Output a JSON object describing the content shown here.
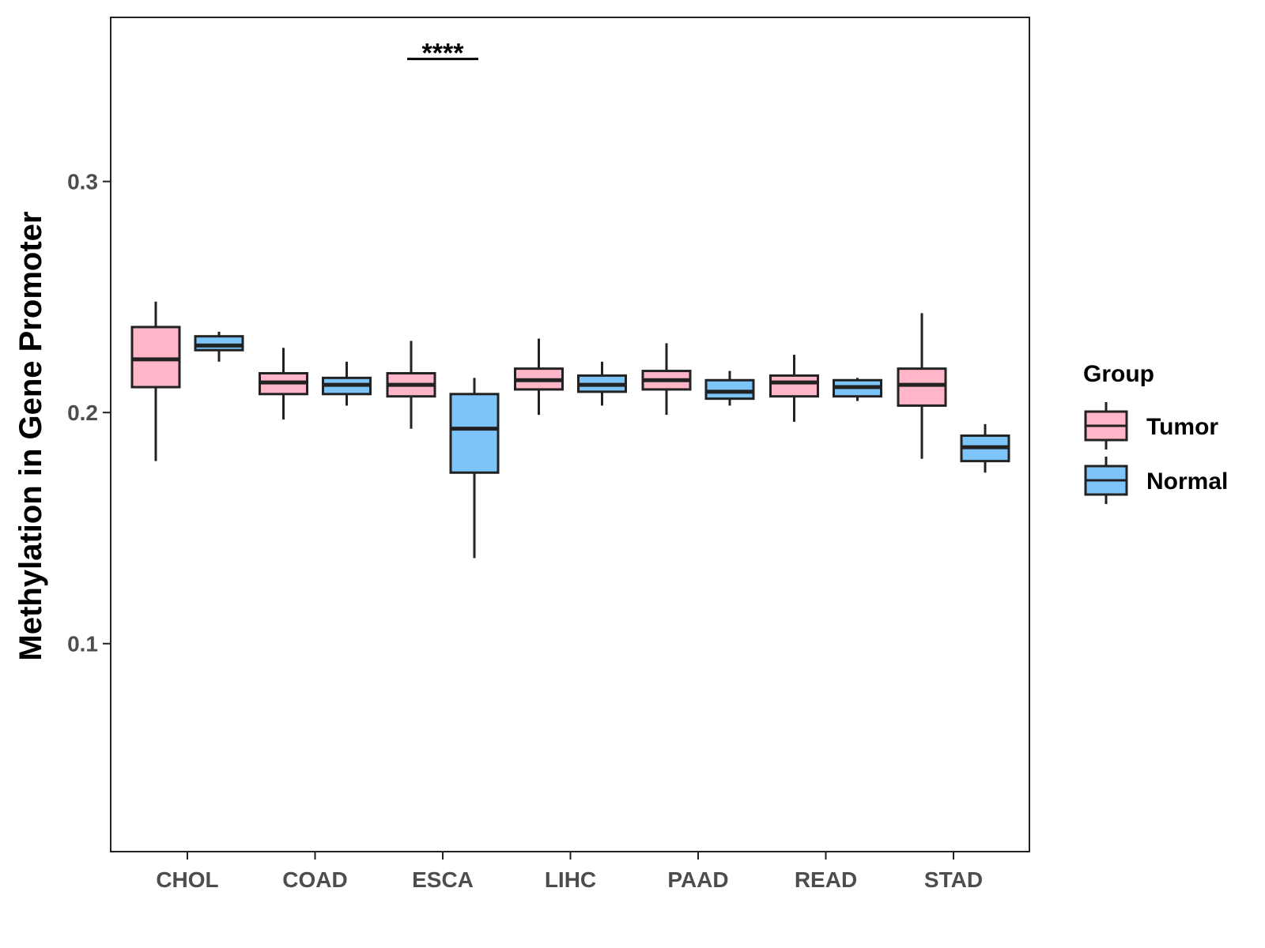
{
  "chart_data": {
    "type": "boxplot",
    "title": "",
    "xlabel": "",
    "ylabel": "Methylation in Gene Promoter",
    "ylim": [
      0.01,
      0.371
    ],
    "yticks": [
      0.1,
      0.2,
      0.3
    ],
    "ytick_labels": [
      "0.1",
      "0.2",
      "0.3"
    ],
    "categories": [
      "CHOL",
      "COAD",
      "ESCA",
      "LIHC",
      "PAAD",
      "READ",
      "STAD"
    ],
    "legend": {
      "title": "Group",
      "position": "right",
      "entries": [
        {
          "name": "Tumor",
          "color": "#FFB6C8"
        },
        {
          "name": "Normal",
          "color": "#7DC4F8"
        }
      ]
    },
    "series": [
      {
        "name": "Tumor",
        "color": "#FFB6C8",
        "boxes": [
          {
            "category": "CHOL",
            "min": 0.179,
            "q1": 0.211,
            "median": 0.223,
            "q3": 0.237,
            "max": 0.248
          },
          {
            "category": "COAD",
            "min": 0.197,
            "q1": 0.208,
            "median": 0.213,
            "q3": 0.217,
            "max": 0.228
          },
          {
            "category": "ESCA",
            "min": 0.193,
            "q1": 0.207,
            "median": 0.212,
            "q3": 0.217,
            "max": 0.231
          },
          {
            "category": "LIHC",
            "min": 0.199,
            "q1": 0.21,
            "median": 0.214,
            "q3": 0.219,
            "max": 0.232
          },
          {
            "category": "PAAD",
            "min": 0.199,
            "q1": 0.21,
            "median": 0.214,
            "q3": 0.218,
            "max": 0.23
          },
          {
            "category": "READ",
            "min": 0.196,
            "q1": 0.207,
            "median": 0.213,
            "q3": 0.216,
            "max": 0.225
          },
          {
            "category": "STAD",
            "min": 0.18,
            "q1": 0.203,
            "median": 0.212,
            "q3": 0.219,
            "max": 0.243
          }
        ]
      },
      {
        "name": "Normal",
        "color": "#7DC4F8",
        "boxes": [
          {
            "category": "CHOL",
            "min": 0.222,
            "q1": 0.227,
            "median": 0.229,
            "q3": 0.233,
            "max": 0.235
          },
          {
            "category": "COAD",
            "min": 0.203,
            "q1": 0.208,
            "median": 0.212,
            "q3": 0.215,
            "max": 0.222
          },
          {
            "category": "ESCA",
            "min": 0.137,
            "q1": 0.174,
            "median": 0.193,
            "q3": 0.208,
            "max": 0.215
          },
          {
            "category": "LIHC",
            "min": 0.203,
            "q1": 0.209,
            "median": 0.212,
            "q3": 0.216,
            "max": 0.222
          },
          {
            "category": "PAAD",
            "min": 0.203,
            "q1": 0.206,
            "median": 0.209,
            "q3": 0.214,
            "max": 0.218
          },
          {
            "category": "READ",
            "min": 0.205,
            "q1": 0.207,
            "median": 0.211,
            "q3": 0.214,
            "max": 0.215
          },
          {
            "category": "STAD",
            "min": 0.174,
            "q1": 0.179,
            "median": 0.185,
            "q3": 0.19,
            "max": 0.195
          }
        ]
      }
    ],
    "annotations": [
      {
        "category": "ESCA",
        "text": "****",
        "y": 0.353
      }
    ]
  }
}
